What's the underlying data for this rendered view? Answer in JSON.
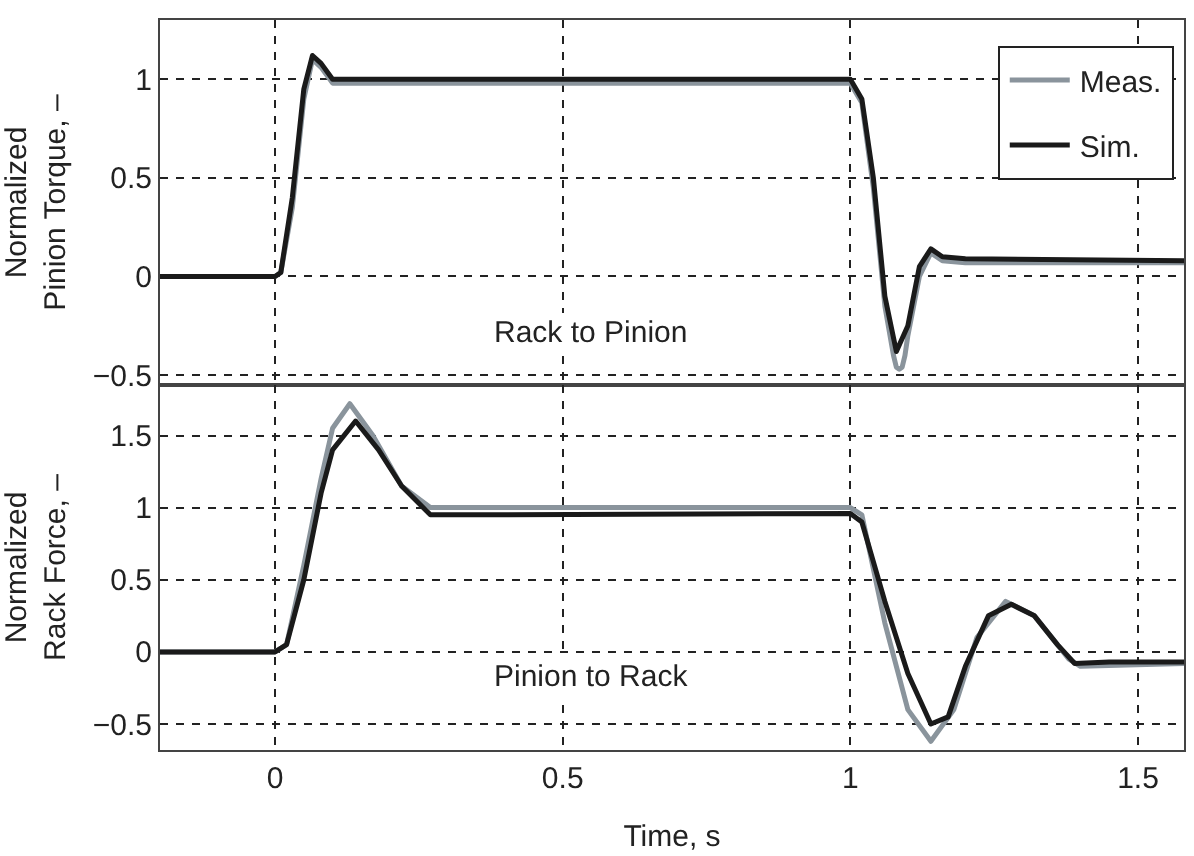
{
  "chart_data": [
    {
      "type": "line",
      "ylabel": "Normalized\nPinion Torque, –",
      "xlim": [
        -0.2,
        1.58
      ],
      "xticks": [
        0,
        0.5,
        1,
        1.5
      ],
      "ylim": [
        -0.55,
        1.3
      ],
      "yticks": [
        -0.5,
        0,
        0.5,
        1
      ],
      "grid": true,
      "legend": "top right",
      "tick_labels": "y",
      "annotations": [
        "Rack to Pinion"
      ],
      "series": [
        {
          "name": "Meas.",
          "color": "#8a949c",
          "x": [
            -0.2,
            0,
            0.01,
            0.03,
            0.05,
            0.065,
            0.08,
            0.1,
            0.3,
            0.6,
            0.9,
            1.0,
            1.02,
            1.04,
            1.06,
            1.075,
            1.08,
            1.085,
            1.09,
            1.095,
            1.1,
            1.12,
            1.14,
            1.16,
            1.2,
            1.4,
            1.58
          ],
          "values": [
            0,
            0,
            0.02,
            0.35,
            0.9,
            1.1,
            1.06,
            0.98,
            0.98,
            0.98,
            0.98,
            0.98,
            0.88,
            0.45,
            -0.15,
            -0.4,
            -0.46,
            -0.47,
            -0.46,
            -0.4,
            -0.3,
            0.0,
            0.12,
            0.08,
            0.07,
            0.07,
            0.07
          ]
        },
        {
          "name": "Sim.",
          "color": "#1a1a1a",
          "x": [
            -0.2,
            0,
            0.01,
            0.03,
            0.05,
            0.065,
            0.08,
            0.1,
            1.0,
            1.02,
            1.04,
            1.06,
            1.08,
            1.1,
            1.12,
            1.14,
            1.16,
            1.2,
            1.58
          ],
          "values": [
            0,
            0,
            0.02,
            0.4,
            0.95,
            1.12,
            1.08,
            1.0,
            1.0,
            0.9,
            0.5,
            -0.1,
            -0.38,
            -0.25,
            0.05,
            0.14,
            0.1,
            0.09,
            0.08
          ]
        }
      ]
    },
    {
      "type": "line",
      "xlabel": "Time, s",
      "ylabel": "Normalized\nRack Force, –",
      "xlim": [
        -0.2,
        1.58
      ],
      "xticks": [
        0,
        0.5,
        1,
        1.5
      ],
      "ylim": [
        -0.68,
        1.85
      ],
      "yticks": [
        -0.5,
        0,
        0.5,
        1,
        1.5
      ],
      "grid": true,
      "annotations": [
        "Pinion to Rack"
      ],
      "series": [
        {
          "color": "#8a949c",
          "x": [
            -0.2,
            0,
            0.02,
            0.05,
            0.08,
            0.1,
            0.13,
            0.17,
            0.22,
            0.27,
            0.5,
            1.0,
            1.02,
            1.06,
            1.1,
            1.14,
            1.18,
            1.22,
            1.27,
            1.32,
            1.38,
            1.4,
            1.58
          ],
          "values": [
            0,
            0,
            0.05,
            0.6,
            1.2,
            1.55,
            1.72,
            1.5,
            1.15,
            1.0,
            1.0,
            1.0,
            0.95,
            0.2,
            -0.4,
            -0.62,
            -0.4,
            0.1,
            0.35,
            0.25,
            -0.05,
            -0.1,
            -0.08
          ]
        },
        {
          "color": "#1a1a1a",
          "x": [
            -0.2,
            0,
            0.02,
            0.05,
            0.08,
            0.1,
            0.14,
            0.18,
            0.22,
            0.27,
            0.32,
            1.0,
            1.02,
            1.06,
            1.1,
            1.14,
            1.17,
            1.2,
            1.24,
            1.28,
            1.32,
            1.36,
            1.39,
            1.45,
            1.58
          ],
          "values": [
            0,
            0,
            0.05,
            0.5,
            1.1,
            1.4,
            1.6,
            1.4,
            1.15,
            0.95,
            0.95,
            0.96,
            0.9,
            0.35,
            -0.15,
            -0.5,
            -0.45,
            -0.1,
            0.25,
            0.33,
            0.25,
            0.05,
            -0.08,
            -0.07,
            -0.07
          ]
        }
      ]
    }
  ]
}
